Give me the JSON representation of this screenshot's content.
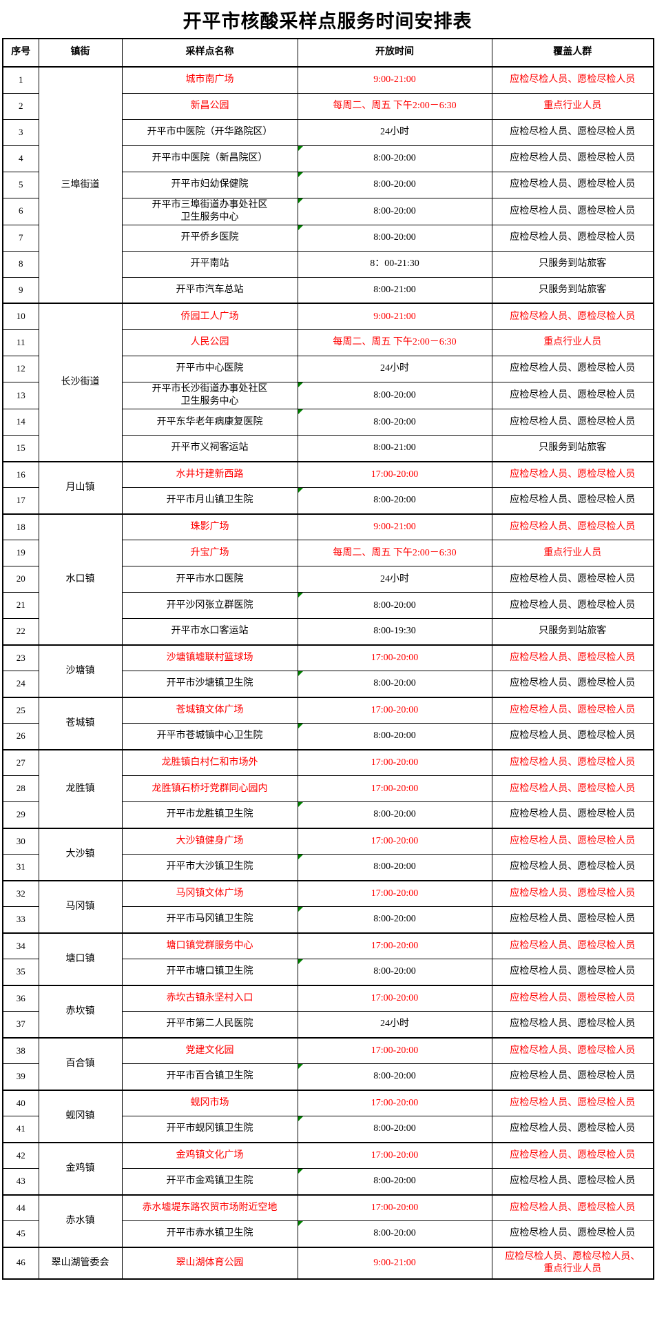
{
  "title": "开平市核酸采样点服务时间安排表",
  "colors": {
    "highlight_red": "#ff0000",
    "text_black": "#000000",
    "border_black": "#000000",
    "marker_green": "#008000",
    "background": "#ffffff"
  },
  "table": {
    "headers": [
      "序号",
      "镇街",
      "采样点名称",
      "开放时间",
      "覆盖人群"
    ],
    "groups": [
      {
        "town": "三埠街道",
        "rows": [
          {
            "no": 1,
            "site": "城市南广场",
            "time": "9:00-21:00",
            "coverage": "应检尽检人员、愿检尽检人员",
            "red": true
          },
          {
            "no": 2,
            "site": "新昌公园",
            "time": "每周二、周五 下午2:00－6:30",
            "coverage": "重点行业人员",
            "red": true
          },
          {
            "no": 3,
            "site": "开平市中医院（开华路院区）",
            "time": "24小时",
            "coverage": "应检尽检人员、愿检尽检人员"
          },
          {
            "no": 4,
            "site": "开平市中医院（新昌院区）",
            "time": "8:00-20:00",
            "coverage": "应检尽检人员、愿检尽检人员",
            "marker": true
          },
          {
            "no": 5,
            "site": "开平市妇幼保健院",
            "time": "8:00-20:00",
            "coverage": "应检尽检人员、愿检尽检人员",
            "marker": true
          },
          {
            "no": 6,
            "site": "开平市三埠街道办事处社区\n卫生服务中心",
            "time": "8:00-20:00",
            "coverage": "应检尽检人员、愿检尽检人员",
            "marker": true
          },
          {
            "no": 7,
            "site": "开平侨乡医院",
            "time": "8:00-20:00",
            "coverage": "应检尽检人员、愿检尽检人员",
            "marker": true
          },
          {
            "no": 8,
            "site": "开平南站",
            "time": "8：00-21:30",
            "coverage": "只服务到站旅客"
          },
          {
            "no": 9,
            "site": "开平市汽车总站",
            "time": "8:00-21:00",
            "coverage": "只服务到站旅客"
          }
        ]
      },
      {
        "town": "长沙街道",
        "rows": [
          {
            "no": 10,
            "site": "侨园工人广场",
            "time": "9:00-21:00",
            "coverage": "应检尽检人员、愿检尽检人员",
            "red": true
          },
          {
            "no": 11,
            "site": "人民公园",
            "time": "每周二、周五 下午2:00－6:30",
            "coverage": "重点行业人员",
            "red": true
          },
          {
            "no": 12,
            "site": "开平市中心医院",
            "time": "24小时",
            "coverage": "应检尽检人员、愿检尽检人员"
          },
          {
            "no": 13,
            "site": "开平市长沙街道办事处社区\n卫生服务中心",
            "time": "8:00-20:00",
            "coverage": "应检尽检人员、愿检尽检人员",
            "marker": true
          },
          {
            "no": 14,
            "site": "开平东华老年病康复医院",
            "time": "8:00-20:00",
            "coverage": "应检尽检人员、愿检尽检人员",
            "marker": true
          },
          {
            "no": 15,
            "site": "开平市义祠客运站",
            "time": "8:00-21:00",
            "coverage": "只服务到站旅客"
          }
        ]
      },
      {
        "town": "月山镇",
        "rows": [
          {
            "no": 16,
            "site": "水井圩建新西路",
            "time": "17:00-20:00",
            "coverage": "应检尽检人员、愿检尽检人员",
            "red": true
          },
          {
            "no": 17,
            "site": "开平市月山镇卫生院",
            "time": "8:00-20:00",
            "coverage": "应检尽检人员、愿检尽检人员",
            "marker": true
          }
        ]
      },
      {
        "town": "水口镇",
        "rows": [
          {
            "no": 18,
            "site": "珠影广场",
            "time": "9:00-21:00",
            "coverage": "应检尽检人员、愿检尽检人员",
            "red": true
          },
          {
            "no": 19,
            "site": "升宝广场",
            "time": "每周二、周五 下午2:00－6:30",
            "coverage": "重点行业人员",
            "red": true
          },
          {
            "no": 20,
            "site": "开平市水口医院",
            "time": "24小时",
            "coverage": "应检尽检人员、愿检尽检人员"
          },
          {
            "no": 21,
            "site": "开平沙冈张立群医院",
            "time": "8:00-20:00",
            "coverage": "应检尽检人员、愿检尽检人员",
            "marker": true
          },
          {
            "no": 22,
            "site": "开平市水口客运站",
            "time": "8:00-19:30",
            "coverage": "只服务到站旅客"
          }
        ]
      },
      {
        "town": "沙塘镇",
        "rows": [
          {
            "no": 23,
            "site": "沙塘镇墟联村篮球场",
            "time": "17:00-20:00",
            "coverage": "应检尽检人员、愿检尽检人员",
            "red": true
          },
          {
            "no": 24,
            "site": "开平市沙塘镇卫生院",
            "time": "8:00-20:00",
            "coverage": "应检尽检人员、愿检尽检人员",
            "marker": true
          }
        ]
      },
      {
        "town": "苍城镇",
        "rows": [
          {
            "no": 25,
            "site": "苍城镇文体广场",
            "time": "17:00-20:00",
            "coverage": "应检尽检人员、愿检尽检人员",
            "red": true
          },
          {
            "no": 26,
            "site": "开平市苍城镇中心卫生院",
            "time": "8:00-20:00",
            "coverage": "应检尽检人员、愿检尽检人员",
            "marker": true
          }
        ]
      },
      {
        "town": "龙胜镇",
        "rows": [
          {
            "no": 27,
            "site": "龙胜镇白村仁和市场外",
            "time": "17:00-20:00",
            "coverage": "应检尽检人员、愿检尽检人员",
            "red": true
          },
          {
            "no": 28,
            "site": "龙胜镇石桥圩党群同心园内",
            "time": "17:00-20:00",
            "coverage": "应检尽检人员、愿检尽检人员",
            "red": true
          },
          {
            "no": 29,
            "site": "开平市龙胜镇卫生院",
            "time": "8:00-20:00",
            "coverage": "应检尽检人员、愿检尽检人员",
            "marker": true
          }
        ]
      },
      {
        "town": "大沙镇",
        "rows": [
          {
            "no": 30,
            "site": "大沙镇健身广场",
            "time": "17:00-20:00",
            "coverage": "应检尽检人员、愿检尽检人员",
            "red": true
          },
          {
            "no": 31,
            "site": "开平市大沙镇卫生院",
            "time": "8:00-20:00",
            "coverage": "应检尽检人员、愿检尽检人员",
            "marker": true
          }
        ]
      },
      {
        "town": "马冈镇",
        "rows": [
          {
            "no": 32,
            "site": "马冈镇文体广场",
            "time": "17:00-20:00",
            "coverage": "应检尽检人员、愿检尽检人员",
            "red": true
          },
          {
            "no": 33,
            "site": "开平市马冈镇卫生院",
            "time": "8:00-20:00",
            "coverage": "应检尽检人员、愿检尽检人员",
            "marker": true
          }
        ]
      },
      {
        "town": "塘口镇",
        "rows": [
          {
            "no": 34,
            "site": "塘口镇党群服务中心",
            "time": "17:00-20:00",
            "coverage": "应检尽检人员、愿检尽检人员",
            "red": true
          },
          {
            "no": 35,
            "site": "开平市塘口镇卫生院",
            "time": "8:00-20:00",
            "coverage": "应检尽检人员、愿检尽检人员",
            "marker": true
          }
        ]
      },
      {
        "town": "赤坎镇",
        "rows": [
          {
            "no": 36,
            "site": "赤坎古镇永坚村入口",
            "time": "17:00-20:00",
            "coverage": "应检尽检人员、愿检尽检人员",
            "red": true
          },
          {
            "no": 37,
            "site": "开平市第二人民医院",
            "time": "24小时",
            "coverage": "应检尽检人员、愿检尽检人员"
          }
        ]
      },
      {
        "town": "百合镇",
        "rows": [
          {
            "no": 38,
            "site": "党建文化园",
            "time": "17:00-20:00",
            "coverage": "应检尽检人员、愿检尽检人员",
            "red": true
          },
          {
            "no": 39,
            "site": "开平市百合镇卫生院",
            "time": "8:00-20:00",
            "coverage": "应检尽检人员、愿检尽检人员",
            "marker": true
          }
        ]
      },
      {
        "town": "蚬冈镇",
        "rows": [
          {
            "no": 40,
            "site": "蚬冈市场",
            "time": "17:00-20:00",
            "coverage": "应检尽检人员、愿检尽检人员",
            "red": true
          },
          {
            "no": 41,
            "site": "开平市蚬冈镇卫生院",
            "time": "8:00-20:00",
            "coverage": "应检尽检人员、愿检尽检人员",
            "marker": true
          }
        ]
      },
      {
        "town": "金鸡镇",
        "rows": [
          {
            "no": 42,
            "site": "金鸡镇文化广场",
            "time": "17:00-20:00",
            "coverage": "应检尽检人员、愿检尽检人员",
            "red": true
          },
          {
            "no": 43,
            "site": "开平市金鸡镇卫生院",
            "time": "8:00-20:00",
            "coverage": "应检尽检人员、愿检尽检人员",
            "marker": true
          }
        ]
      },
      {
        "town": "赤水镇",
        "rows": [
          {
            "no": 44,
            "site": "赤水墟堤东路农贸市场附近空地",
            "time": "17:00-20:00",
            "coverage": "应检尽检人员、愿检尽检人员",
            "red": true
          },
          {
            "no": 45,
            "site": "开平市赤水镇卫生院",
            "time": "8:00-20:00",
            "coverage": "应检尽检人员、愿检尽检人员",
            "marker": true
          }
        ]
      },
      {
        "town": "翠山湖管委会",
        "rows": [
          {
            "no": 46,
            "site": "翠山湖体育公园",
            "time": "9:00-21:00",
            "coverage": "应检尽检人员、愿检尽检人员、\n重点行业人员",
            "red": true,
            "tall": true
          }
        ]
      }
    ]
  }
}
